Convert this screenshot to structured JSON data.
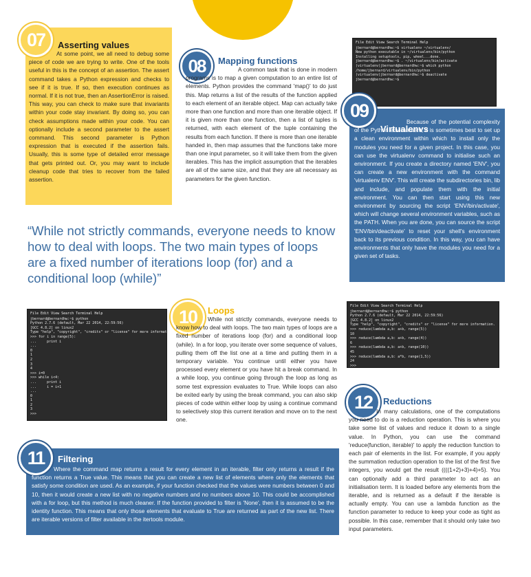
{
  "sections": {
    "s07": {
      "number": "07",
      "title": "Asserting values",
      "body": "At some point, we all need to debug some piece of code we are trying to write. One of the tools useful in this is the concept of an assertion. The assert command takes a Python expression and checks to see if it is true. If so, then execution continues as normal. If it is not true, then an AssertionError is raised. This way, you can check to make sure that invariants within your code stay invariant. By doing so, you can check assumptions made within your code. You can optionally include a second parameter to the assert command. This second parameter is Python expression that is executed if the assertion fails. Usually, this is some type of detailed error message that gets printed out. Or, you may want to include cleanup code that tries to recover from the failed assertion."
    },
    "s08": {
      "number": "08",
      "title": "Mapping functions",
      "body": "A common task that is done in modern programs is to map a given computation to an entire list of elements. Python provides the command 'map()' to do just this. Map returns a list of the results of the function applied to each element of an iterable object. Map can actually take more than one function and more than one iterable object. If it is given more than one function, then a list of tuples is returned, with each element of the tuple containing the results from each function. If there is more than one iterable handed in, then map assumes that the functions take more than one input parameter, so it will take them from the given iterables. This has the implicit assumption that the iterables are all of the same size, and that they are all necessary as parameters for the given function."
    },
    "s09": {
      "number": "09",
      "title": "Virtualenvs",
      "body": "Because of the potential complexity of the Python environment, it is sometimes best to set up a clean environment within which to install only the modules you need for a given project. In this case, you can use the virtualenv command to initialise such an environment. If you create a directory named 'ENV', you can create a new environment with the command 'virtualenv ENV'. This will create the subdirectories bin, lib and include, and populate them with the initial environment. You can then start using this new environment by sourcing the script 'ENV/bin/activate', which will change several environment variables, such as the PATH. When you are done, you can source the script 'ENV/bin/deactivate' to reset your shell's environment back to its previous condition. In this way, you can have environments that only have the modules you need for a given set of tasks."
    },
    "s10": {
      "number": "10",
      "title": "Loops",
      "body": "While not strictly commands, everyone needs to know how to deal with loops. The two main types of loops are a fixed number of iterations loop (for) and a conditional loop (while). In a for loop, you iterate over some sequence of values, pulling them off the list one at a time and putting them in a temporary variable. You continue until either you have processed every element or you have hit a break command. In a while loop, you continue going through the loop as long as some test expression evaluates to True. While loops can also be exited early by using the break command, you can also skip pieces of code within either loop by using a continue command to selectively stop this current iteration and move on to the next one."
    },
    "s11": {
      "number": "11",
      "title": "Filtering",
      "body": "Where the command map returns a result for every element in an iterable, filter only returns a result if the function returns a True value. This means that you can create a new list of elements where only the elements that satisfy some condition are used. As an example, if your function checked that the values were numbers between 0 and 10, then it would create a new list with no negative numbers and no numbers above 10. This could be accomplished with a for loop, but this method is much cleaner. If the function provided to filter is 'None', then it is assumed to be the identity function. This means that only those elements that evaluate to True are returned as part of the new list. There are iterable versions of filter available in the itertools module."
    },
    "s12": {
      "number": "12",
      "title": "Reductions",
      "body": "In many calculations, one of the computations you need to do is a reduction operation. This is where you take some list of values and reduce it down to a single value. In Python, you can use the command 'reduce(function, iterable)' to apply the reduction function to each pair of elements in the list. For example, if you apply the summation reduction operation to the list of the first five integers, you would get the result ((((1+2)+3)+4)+5). You can optionally add a third parameter to act as an initialisation term. It is loaded before any elements from the iterable, and is returned as a default if the iterable is actually empty. You can use a lambda function as the function parameter to reduce to keep your code as tight as possible. In this case, remember that it should only take two input parameters."
    }
  },
  "pull_quote": "“While not strictly commands, everyone needs to know how to deal with loops. The two main types of loops are a fixed number of iterations loop (for) and a conditional loop (while)”",
  "terminals": {
    "virtualenv": {
      "menu": "File  Edit  View  Search  Terminal  Help",
      "lines": [
        "jbernard@bernardhw:~$ virtualenv ~/virtualenv/",
        "New python executable in ~/virtualenv/bin/python",
        "Installing setuptools, pip, wheel...done.",
        "jbernard@bernardhw:~$ . ~/virtualenv/bin/activate",
        "(virtualenv)jbernard@bernardhw:~$ which python",
        "/home/jbernard/virtualenv/bin/python",
        "(virtualenv)jbernard@bernardhw:~$ deactivate",
        "jbernard@bernardhw:~$"
      ]
    },
    "loops": {
      "menu": "File  Edit  View  Search  Terminal  Help",
      "lines": [
        "jbernard@bernardhw:~$ python",
        "Python 2.7.6 (default, Mar 22 2014, 22:59:56)",
        "[GCC 4.8.2] on linux2",
        "Type \"help\", \"copyright\", \"credits\" or \"license\" for more information.",
        ">>> for i in range(5):",
        "...     print i",
        "...",
        "0",
        "1",
        "2",
        "3",
        "4",
        ">>> i=0",
        ">>> while i<4:",
        "...     print i",
        "...     i = i+1",
        "...",
        "0",
        "1",
        "2",
        "3",
        ">>>"
      ]
    },
    "reductions": {
      "menu": "File  Edit  View  Search  Terminal  Help",
      "lines": [
        "jbernard@bernardhw:~$ python",
        "Python 2.7.6 (default, Mar 22 2014, 22:59:56)",
        "[GCC 4.8.2] on linux2",
        "Type \"help\", \"copyright\", \"credits\" or \"license\" for more information.",
        ">>> reduce(lambda a,b: a+b, range(5))",
        "10",
        ">>> reduce(lambda a,b: a+b, range(4))",
        "6",
        ">>> reduce(lambda a,b: a+b, range(10))",
        "45",
        ">>> reduce(lambda a,b: a*b, range(1,5))",
        "24",
        ">>>"
      ]
    }
  },
  "colors": {
    "yellow": "#fcd75a",
    "blue": "#3d6ea2",
    "accent_yellow": "#f6c200"
  }
}
